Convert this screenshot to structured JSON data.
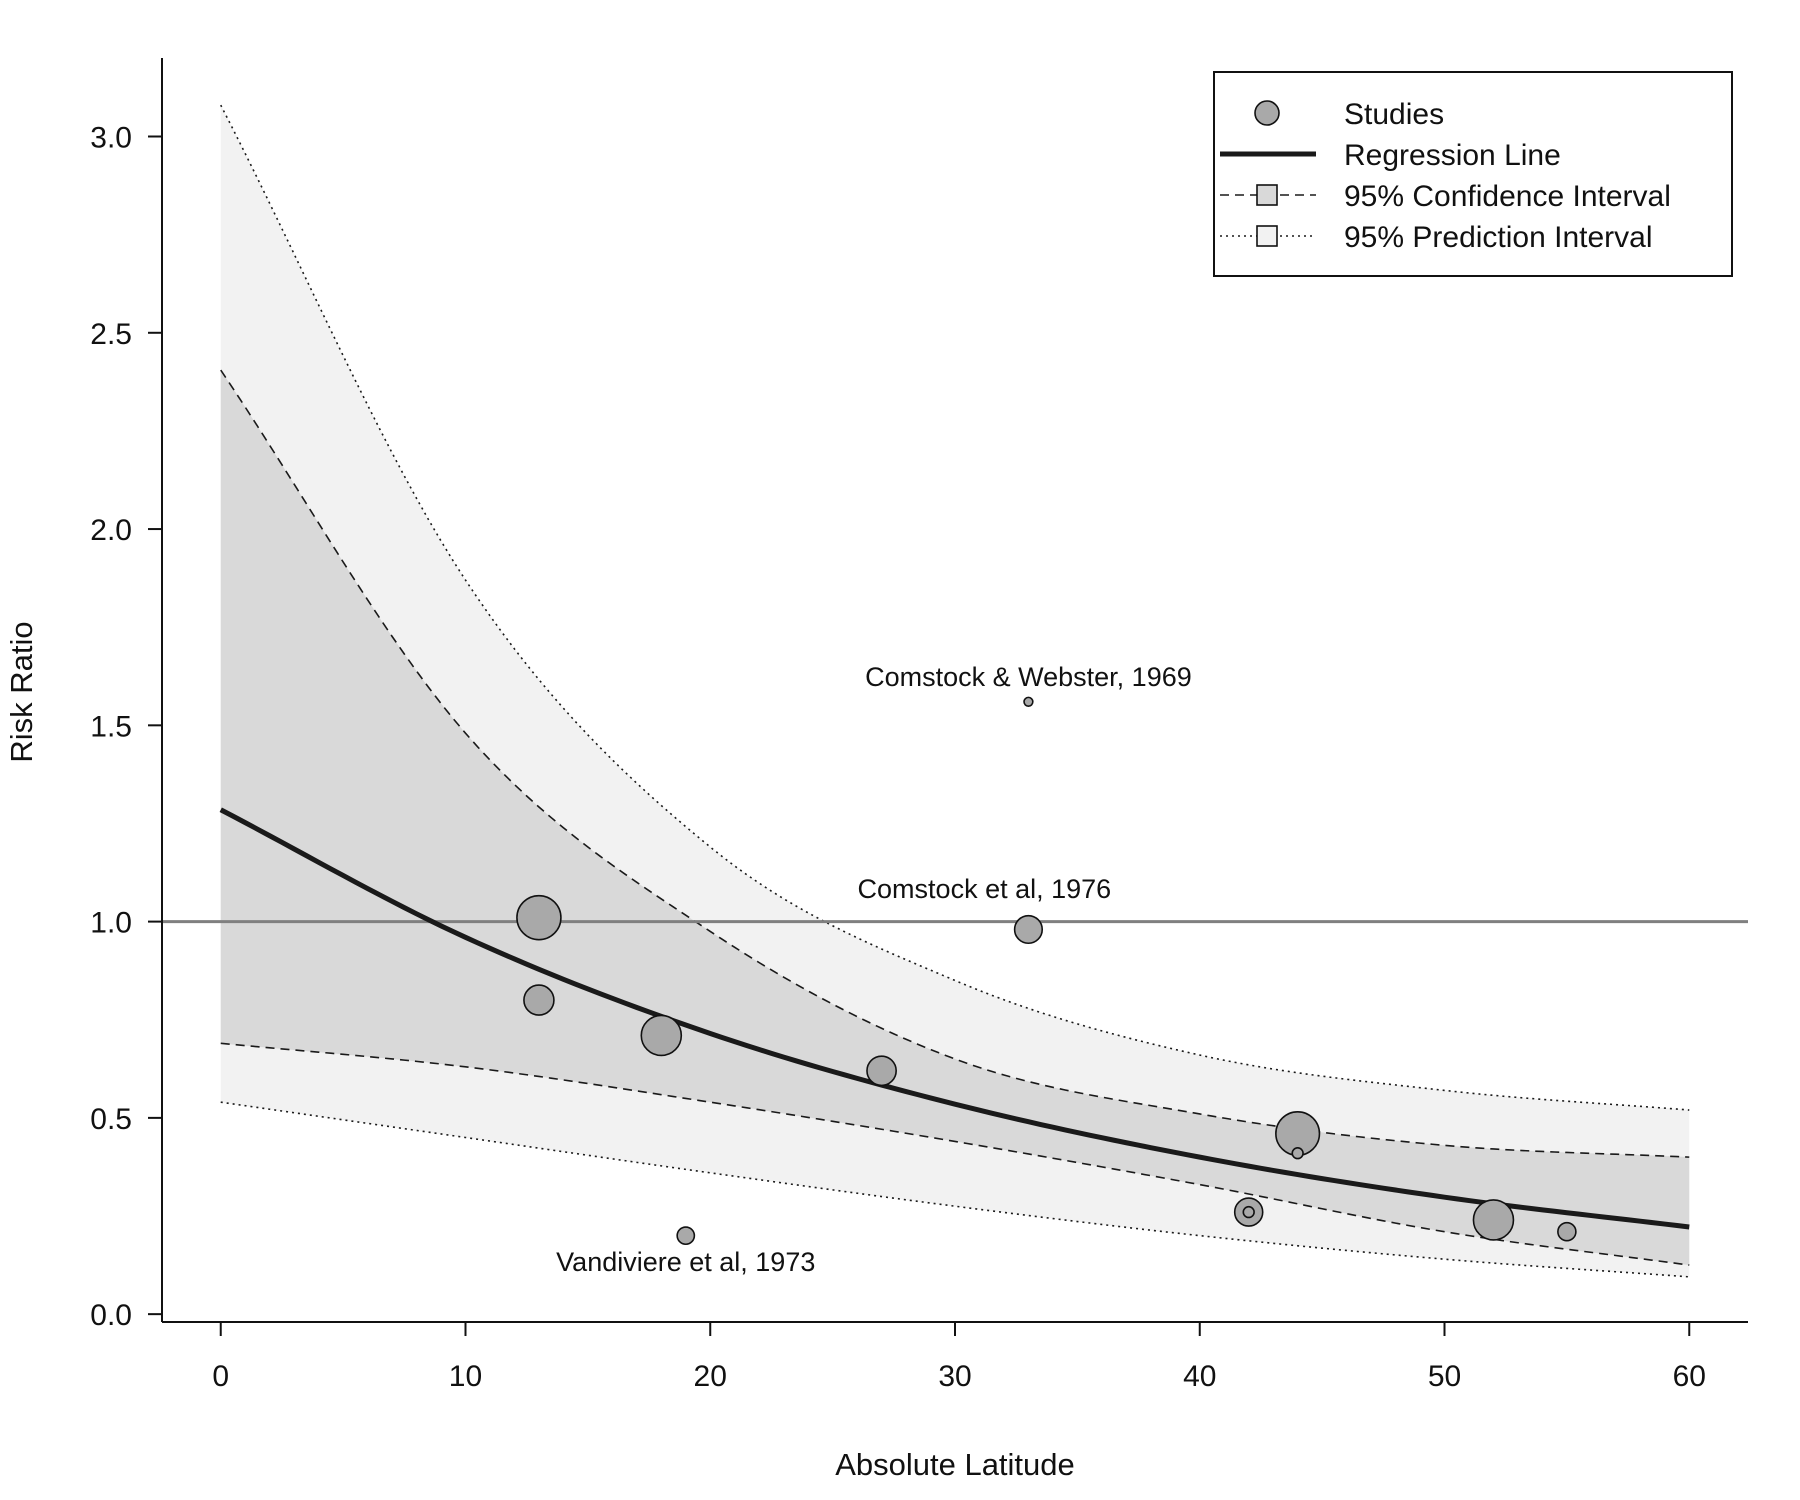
{
  "chart_data": {
    "type": "scatter",
    "xlabel": "Absolute Latitude",
    "ylabel": "Risk Ratio",
    "xlim": [
      -2.4,
      62.4
    ],
    "ylim": [
      -0.02,
      3.2
    ],
    "xticks": [
      0,
      10,
      20,
      30,
      40,
      50,
      60
    ],
    "yticks": [
      0.0,
      0.5,
      1.0,
      1.5,
      2.0,
      2.5,
      3.0
    ],
    "x_tick_labels": [
      "0",
      "10",
      "20",
      "30",
      "40",
      "50",
      "60"
    ],
    "y_tick_labels": [
      "0.0",
      "0.5",
      "1.0",
      "1.5",
      "2.0",
      "2.5",
      "3.0"
    ],
    "reference_line": {
      "y": 1.0,
      "color": "#808080"
    },
    "legend": {
      "position": "top-right",
      "entries": [
        {
          "label": "Studies",
          "symbol": "circle"
        },
        {
          "label": "Regression Line",
          "symbol": "solid-line"
        },
        {
          "label": "95% Confidence Interval",
          "symbol": "dashed-line-square"
        },
        {
          "label": "95% Prediction Interval",
          "symbol": "dotted-line-square"
        }
      ]
    },
    "regression_line": {
      "x": [
        0,
        10,
        20,
        30,
        40,
        50,
        60
      ],
      "y": [
        1.285,
        0.96,
        0.715,
        0.535,
        0.4,
        0.298,
        0.222
      ]
    },
    "confidence_interval": {
      "x": [
        0,
        10,
        20,
        30,
        40,
        50,
        60
      ],
      "lower": [
        0.69,
        0.63,
        0.54,
        0.44,
        0.33,
        0.21,
        0.125
      ],
      "upper": [
        2.405,
        1.48,
        0.975,
        0.65,
        0.51,
        0.43,
        0.4
      ]
    },
    "prediction_interval": {
      "x": [
        0,
        10,
        20,
        30,
        40,
        50,
        60
      ],
      "lower": [
        0.54,
        0.45,
        0.36,
        0.275,
        0.2,
        0.14,
        0.095
      ],
      "upper": [
        3.08,
        1.87,
        1.19,
        0.85,
        0.66,
        0.57,
        0.52
      ]
    },
    "studies": [
      {
        "x": 13,
        "y": 1.01,
        "weight": 11.0
      },
      {
        "x": 13,
        "y": 0.8,
        "weight": 7.5
      },
      {
        "x": 18,
        "y": 0.71,
        "weight": 10.0
      },
      {
        "x": 27,
        "y": 0.62,
        "weight": 7.3
      },
      {
        "x": 19,
        "y": 0.2,
        "weight": 4.3
      },
      {
        "x": 33,
        "y": 0.98,
        "weight": 6.9
      },
      {
        "x": 33,
        "y": 1.56,
        "weight": 2.2
      },
      {
        "x": 44,
        "y": 0.46,
        "weight": 10.9
      },
      {
        "x": 44,
        "y": 0.41,
        "weight": 2.7
      },
      {
        "x": 42,
        "y": 0.26,
        "weight": 7.0
      },
      {
        "x": 42,
        "y": 0.26,
        "weight": 2.7
      },
      {
        "x": 52,
        "y": 0.24,
        "weight": 10.0
      },
      {
        "x": 55,
        "y": 0.21,
        "weight": 4.5
      }
    ],
    "annotations": [
      {
        "text": "Comstock & Webster, 1969",
        "x": 33,
        "y": 1.6
      },
      {
        "text": "Comstock et al, 1976",
        "x": 31.2,
        "y": 1.06
      },
      {
        "text": "Vandiviere et al, 1973",
        "x": 19,
        "y": 0.11
      }
    ],
    "colors": {
      "prediction_fill": "#f2f2f2",
      "confidence_fill": "#d9d9d9",
      "point_fill": "#a9a9a9",
      "line": "#1a1a1a"
    }
  }
}
